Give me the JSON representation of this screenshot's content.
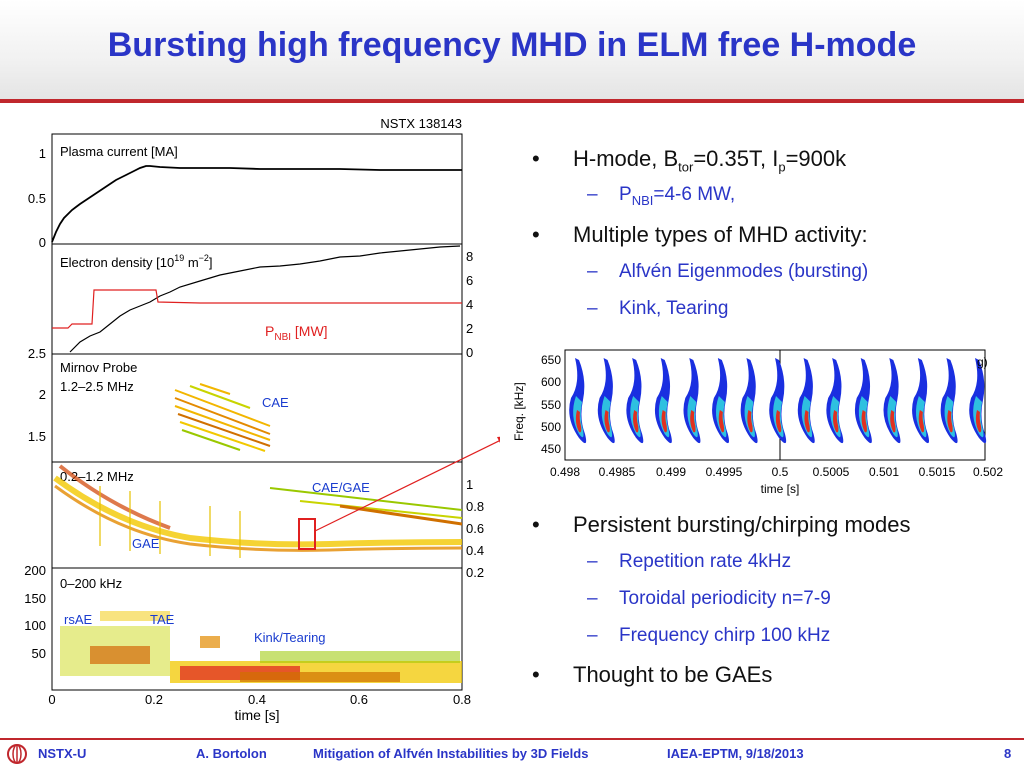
{
  "title": "Bursting high frequency MHD in ELM free H-mode",
  "bullets": [
    {
      "level": 1,
      "parts": [
        "H-mode,  B",
        "tor",
        "=0.35T,  I",
        "p",
        "=900k"
      ]
    },
    {
      "level": 2,
      "parts": [
        "P",
        "NBI",
        "=4-6 MW,"
      ]
    },
    {
      "level": 1,
      "text": "Multiple types of MHD activity:"
    },
    {
      "level": 2,
      "text": "Alfvén Eigenmodes  (bursting)"
    },
    {
      "level": 2,
      "text": "Kink, Tearing"
    },
    {
      "level": 1,
      "text": "Persistent bursting/chirping modes"
    },
    {
      "level": 2,
      "text": "Repetition rate 4kHz"
    },
    {
      "level": 2,
      "text": "Toroidal periodicity n=7-9"
    },
    {
      "level": 2,
      "text": "Frequency chirp 100 kHz"
    },
    {
      "level": 1,
      "text": "Thought to be GAEs"
    }
  ],
  "bullet_glyphs": {
    "level1": "•",
    "level2": "–"
  },
  "main_figure": {
    "shot_label": "NSTX 138143",
    "panels": [
      {
        "title": "Plasma current [MA]",
        "left_ticks": [
          "1",
          "0.5",
          "0"
        ]
      },
      {
        "title_parts": [
          "Electron density [10",
          "19",
          " m",
          "−2",
          "]"
        ],
        "left_ticks": [
          "2.5"
        ],
        "right_ticks": [
          "8",
          "6",
          "4",
          "2",
          "0"
        ],
        "pnbi_parts": [
          "P",
          "NBI",
          " [MW]"
        ]
      },
      {
        "title": "Mirnov Probe",
        "subtitle": "1.2–2.5 MHz",
        "left_ticks": [
          "2",
          "1.5"
        ],
        "labels": [
          "CAE"
        ]
      },
      {
        "title": "0.2–1.2 MHz",
        "right_ticks": [
          "1",
          "0.8",
          "0.6",
          "0.4",
          "0.2"
        ],
        "labels": [
          "CAE/GAE",
          "GAE"
        ]
      },
      {
        "title": "0–200 kHz",
        "left_ticks": [
          "200",
          "150",
          "100",
          "50"
        ],
        "labels": [
          "rsAE",
          "TAE",
          "Kink/Tearing"
        ]
      }
    ],
    "x_ticks": [
      "0",
      "0.2",
      "0.4",
      "0.6",
      "0.8"
    ],
    "x_label": "time [s]"
  },
  "inset_figure": {
    "y_ticks": [
      "650",
      "600",
      "550",
      "500",
      "450"
    ],
    "y_label": "Freq. [kHz]",
    "x_ticks": [
      "0.498",
      "0.4985",
      "0.499",
      "0.4995",
      "0.5",
      "0.5005",
      "0.501",
      "0.5015",
      "0.502"
    ],
    "x_label": "time [s]",
    "corner_label": "g)",
    "chirp_count": 15
  },
  "footer": {
    "org": "NSTX-U",
    "author": "A. Bortolon",
    "talk": "Mitigation of Alfvén Instabilities by 3D Fields",
    "venue": "IAEA-EPTM, 9/18/2013",
    "page": "8"
  },
  "colors": {
    "title": "#2a35c7",
    "rule": "#c0272d",
    "sub_bullet": "#2a35c7",
    "pnbi": "#e02020",
    "panel_label": "#1a3ccf"
  }
}
